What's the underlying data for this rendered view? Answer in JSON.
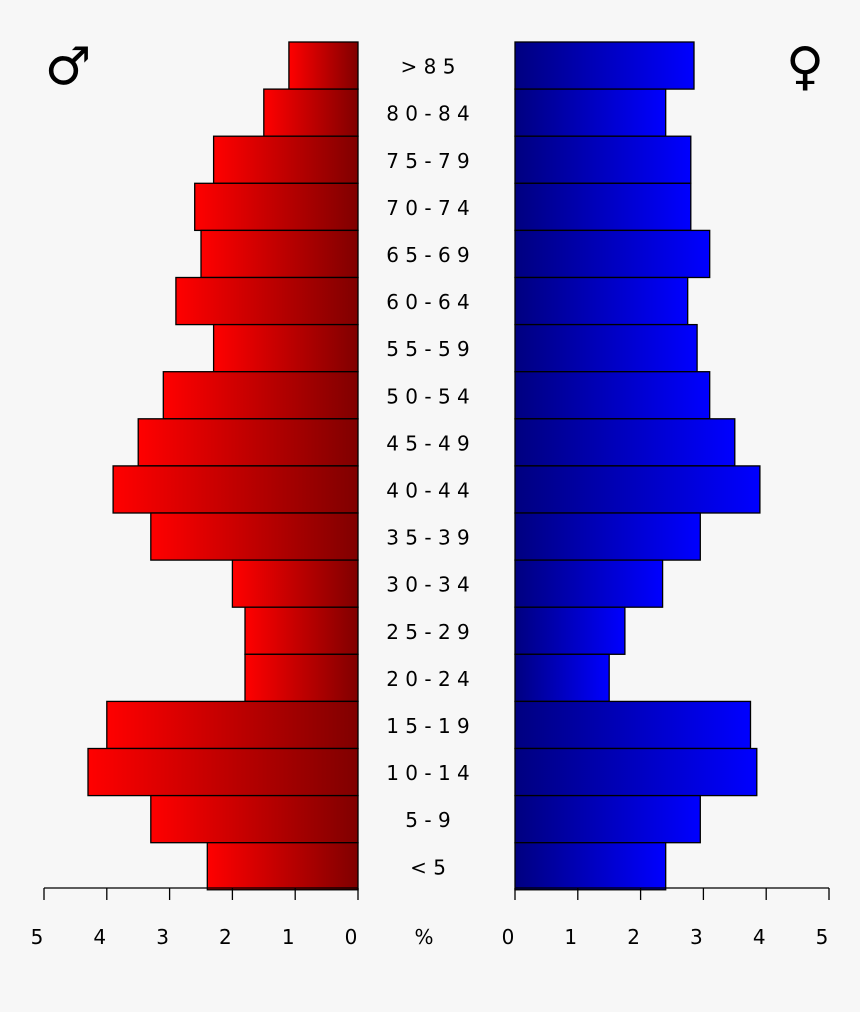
{
  "symbols": {
    "male": "♂",
    "female": "♀"
  },
  "chart_data": {
    "type": "bar",
    "orientation": "horizontal-pyramid",
    "categories": [
      ">85",
      "80-84",
      "75-79",
      "70-74",
      "65-69",
      "60-64",
      "55-59",
      "50-54",
      "45-49",
      "40-44",
      "35-39",
      "30-34",
      "25-29",
      "20-24",
      "15-19",
      "10-14",
      "5-9",
      "<5"
    ],
    "category_labels": [
      "> 8 5",
      "8 0 - 8 4",
      "7 5 - 7 9",
      "7 0 - 7 4",
      "6 5 - 6 9",
      "6 0 - 6 4",
      "5 5 - 5 9",
      "5 0 - 5 4",
      "4 5 - 4 9",
      "4 0 - 4 4",
      "3 5 - 3 9",
      "3 0 - 3 4",
      "2 5 - 2 9",
      "2 0 - 2 4",
      "1 5 - 1 9",
      "1 0 - 1 4",
      "5 - 9",
      "< 5"
    ],
    "series": [
      {
        "symbol": "♂",
        "color_start": "#ff0000",
        "color_end": "#800000",
        "values": [
          1.1,
          1.5,
          2.3,
          2.6,
          2.5,
          2.9,
          2.3,
          3.1,
          3.5,
          3.9,
          3.3,
          2.0,
          1.8,
          1.8,
          4.0,
          4.3,
          3.3,
          2.4
        ]
      },
      {
        "symbol": "♀",
        "color_start": "#000080",
        "color_end": "#0000ff",
        "values": [
          2.85,
          2.4,
          2.8,
          2.8,
          3.1,
          2.75,
          2.9,
          3.1,
          3.5,
          3.9,
          2.95,
          2.35,
          1.75,
          1.5,
          3.75,
          3.85,
          2.95,
          2.4
        ]
      }
    ],
    "xlim": [
      0,
      5
    ],
    "x_ticks": [
      "0",
      "1",
      "2",
      "3",
      "4",
      "5"
    ],
    "unit_label": "%",
    "grid": false,
    "legend": "none"
  }
}
